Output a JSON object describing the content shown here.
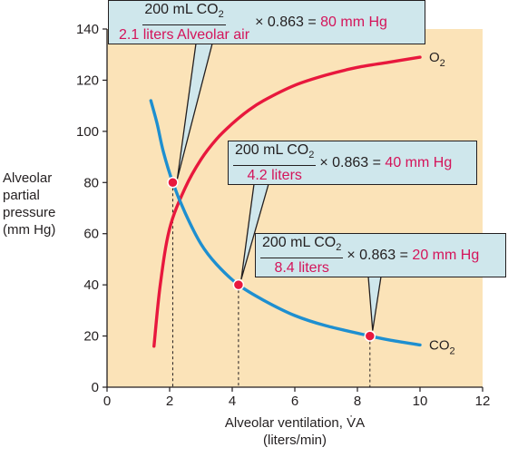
{
  "chart_data": {
    "type": "line",
    "xlabel": "Alveolar ventilation, V̇A",
    "xlabel_units": "(liters/min)",
    "ylabel": [
      "Alveolar",
      "partial",
      "pressure",
      "(mm Hg)"
    ],
    "xlim": [
      0,
      12
    ],
    "ylim": [
      0,
      140
    ],
    "x_ticks": [
      0,
      2,
      4,
      6,
      8,
      10,
      12
    ],
    "y_ticks": [
      0,
      20,
      40,
      60,
      80,
      100,
      120,
      140
    ],
    "grid": false,
    "background_color": "#fbe3b8",
    "series": [
      {
        "name": "O2",
        "color": "#e8183d",
        "x": [
          1.5,
          1.7,
          2.0,
          2.5,
          3.0,
          3.5,
          4.0,
          4.5,
          5.0,
          6.0,
          7.0,
          8.0,
          9.0,
          10.0
        ],
        "y": [
          16,
          40,
          62,
          78,
          89,
          97,
          103,
          108,
          112,
          118,
          122,
          125,
          127,
          129
        ]
      },
      {
        "name": "CO2",
        "color": "#1e8fd0",
        "x": [
          1.4,
          1.6,
          1.8,
          2.1,
          2.5,
          3.0,
          3.5,
          4.2,
          5.0,
          6.0,
          7.0,
          8.4,
          9.0,
          10.0
        ],
        "y": [
          112,
          103,
          92,
          80,
          68,
          56,
          48,
          40,
          34,
          28,
          24,
          20,
          18.5,
          16.5
        ]
      }
    ],
    "points": [
      {
        "x": 2.1,
        "y": 80
      },
      {
        "x": 4.2,
        "y": 40
      },
      {
        "x": 8.4,
        "y": 20
      }
    ],
    "point_color": "#e8183d",
    "annotations": [
      {
        "numerator": "200 mL CO2",
        "denominator": "2.1 liters Alveolar air",
        "factor": "× 0.863 =",
        "result": "80 mm Hg"
      },
      {
        "numerator": "200 mL CO2",
        "denominator": "4.2 liters",
        "factor": "× 0.863 =",
        "result": "40 mm Hg"
      },
      {
        "numerator": "200 mL CO2",
        "denominator": "8.4 liters",
        "factor": "× 0.863 =",
        "result": "20 mm Hg"
      }
    ]
  }
}
